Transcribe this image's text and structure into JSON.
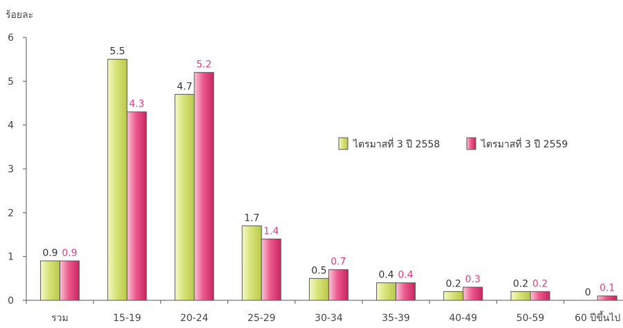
{
  "chart_data": {
    "type": "bar",
    "ylabel": "ร้อยละ",
    "ylim": [
      0,
      6
    ],
    "yticks": [
      0,
      1,
      2,
      3,
      4,
      5,
      6
    ],
    "grid": false,
    "legend_position": "right",
    "categories": [
      "รวม",
      "15-19",
      "20-24",
      "25-29",
      "30-34",
      "35-39",
      "40-49",
      "50-59",
      "60 ปีขึ้นไป"
    ],
    "series": [
      {
        "name": "ไตรมาสที่ 3 ปี 2558",
        "values": [
          0.9,
          5.5,
          4.7,
          1.7,
          0.5,
          0.4,
          0.2,
          0.2,
          0
        ],
        "color": "#d6e27a",
        "label_color": "#333333"
      },
      {
        "name": "ไตรมาสที่ 3 ปี 2559",
        "values": [
          0.9,
          4.3,
          5.2,
          1.4,
          0.7,
          0.4,
          0.3,
          0.2,
          0.1
        ],
        "color": "#e8447e",
        "label_color": "#e0407a"
      }
    ]
  }
}
